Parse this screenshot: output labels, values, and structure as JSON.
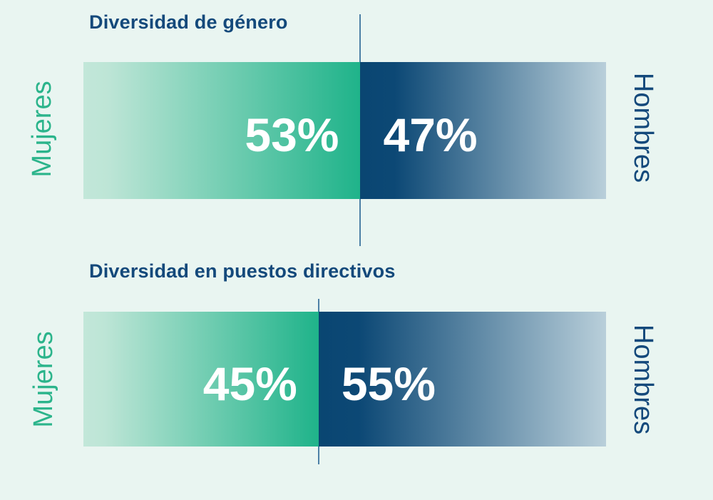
{
  "colors": {
    "background": "#e9f5f1",
    "title_text": "#14497b",
    "women_label_text": "#2bb48b",
    "men_label_text": "#14497b",
    "women_gradient_start": "#c2e7d9",
    "women_gradient_end": "#1fb38a",
    "men_gradient_start": "#0a4672",
    "men_gradient_end": "#b9cfda",
    "split_line": "#4d80a6",
    "value_text": "#ffffff"
  },
  "chart_data": [
    {
      "type": "bar",
      "orientation": "horizontal-stacked",
      "title": "Diversidad de género",
      "categories": [
        "Mujeres",
        "Hombres"
      ],
      "values": [
        53,
        47
      ],
      "values_display": [
        "53%",
        "47%"
      ],
      "unit": "%",
      "xlim": [
        0,
        100
      ],
      "left_axis_label": "Mujeres",
      "right_axis_label": "Hombres",
      "grid": false,
      "legend": "none"
    },
    {
      "type": "bar",
      "orientation": "horizontal-stacked",
      "title": "Diversidad en puestos directivos",
      "categories": [
        "Mujeres",
        "Hombres"
      ],
      "values": [
        45,
        55
      ],
      "values_display": [
        "45%",
        "55%"
      ],
      "unit": "%",
      "xlim": [
        0,
        100
      ],
      "left_axis_label": "Mujeres",
      "right_axis_label": "Hombres",
      "grid": false,
      "legend": "none"
    }
  ]
}
